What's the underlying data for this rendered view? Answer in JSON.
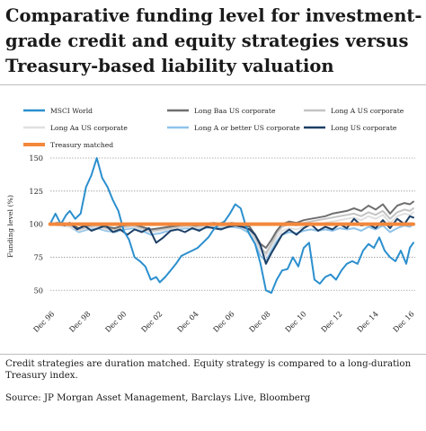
{
  "header": {
    "title": "Comparative funding level for investment-grade credit and equity strategies versus Treasury-based liability valuation"
  },
  "footer": {
    "note": "Credit strategies are duration matched. Equity strategy is compared to a long-duration Treasury index.",
    "source": "Source: JP Morgan Asset Management, Barclays Live, Bloomberg"
  },
  "chart_data": {
    "type": "line",
    "title": "Comparative funding level for investment-grade credit and equity strategies versus Treasury-based liability valuation",
    "xlabel": "",
    "ylabel": "Funding level (%)",
    "ylim": [
      40,
      150
    ],
    "yticks": [
      50,
      75,
      100,
      125,
      150
    ],
    "xlim": [
      1996.917,
      2017.2
    ],
    "xticks": [
      {
        "label": "Dec 96",
        "value": 1996.917
      },
      {
        "label": "Dec 98",
        "value": 1998.917
      },
      {
        "label": "Dec 00",
        "value": 2000.917
      },
      {
        "label": "Dec 02",
        "value": 2002.917
      },
      {
        "label": "Dec 04",
        "value": 2004.917
      },
      {
        "label": "Dec 06",
        "value": 2006.917
      },
      {
        "label": "Dec 08",
        "value": 2008.917
      },
      {
        "label": "Dec 10",
        "value": 2010.917
      },
      {
        "label": "Dec 12",
        "value": 2012.917
      },
      {
        "label": "Dec 14",
        "value": 2014.917
      },
      {
        "label": "Dec 16",
        "value": 2016.917
      }
    ],
    "grid": "horizontal dotted",
    "legend_position": "top",
    "series": [
      {
        "name": "MSCI World",
        "color": "#2b8fce",
        "x": [
          1996.9,
          1997.2,
          1997.5,
          1997.8,
          1998.0,
          1998.3,
          1998.6,
          1998.9,
          1999.2,
          1999.5,
          1999.8,
          2000.1,
          2000.4,
          2000.7,
          2001.0,
          2001.3,
          2001.6,
          2001.9,
          2002.2,
          2002.5,
          2002.8,
          2003.0,
          2003.3,
          2003.6,
          2003.9,
          2004.2,
          2004.5,
          2004.8,
          2005.1,
          2005.4,
          2005.7,
          2006.0,
          2006.3,
          2006.6,
          2006.9,
          2007.2,
          2007.5,
          2007.8,
          2008.0,
          2008.3,
          2008.6,
          2008.9,
          2009.2,
          2009.5,
          2009.8,
          2010.1,
          2010.4,
          2010.7,
          2011.0,
          2011.3,
          2011.6,
          2011.9,
          2012.2,
          2012.5,
          2012.8,
          2013.1,
          2013.4,
          2013.7,
          2014.0,
          2014.3,
          2014.6,
          2014.9,
          2015.2,
          2015.5,
          2015.8,
          2016.1,
          2016.4,
          2016.7,
          2016.9,
          2017.1
        ],
        "y": [
          100,
          108,
          100,
          107,
          110,
          104,
          108,
          128,
          137,
          150,
          135,
          128,
          118,
          110,
          95,
          88,
          75,
          72,
          68,
          58,
          60,
          56,
          60,
          65,
          70,
          76,
          78,
          80,
          82,
          86,
          90,
          96,
          100,
          102,
          108,
          115,
          112,
          98,
          92,
          85,
          70,
          50,
          48,
          58,
          65,
          66,
          75,
          68,
          82,
          86,
          58,
          55,
          60,
          62,
          58,
          65,
          70,
          72,
          70,
          80,
          85,
          82,
          90,
          80,
          75,
          72,
          80,
          70,
          82,
          86
        ]
      },
      {
        "name": "Long Baa US corporate",
        "color": "#6f6f6f",
        "x": [
          1996.9,
          1997.5,
          1998.0,
          1998.5,
          1999.0,
          1999.5,
          2000.0,
          2000.5,
          2001.0,
          2001.5,
          2002.0,
          2002.5,
          2003.0,
          2003.5,
          2004.0,
          2004.5,
          2005.0,
          2005.5,
          2006.0,
          2006.5,
          2007.0,
          2007.5,
          2008.0,
          2008.3,
          2008.6,
          2008.9,
          2009.2,
          2009.5,
          2009.8,
          2010.2,
          2010.6,
          2011.0,
          2011.4,
          2011.8,
          2012.2,
          2012.6,
          2013.0,
          2013.4,
          2013.8,
          2014.2,
          2014.6,
          2015.0,
          2015.4,
          2015.8,
          2016.2,
          2016.6,
          2016.9,
          2017.1
        ],
        "y": [
          100,
          101,
          100,
          97,
          99,
          100,
          98,
          97,
          99,
          100,
          98,
          96,
          97,
          98,
          99,
          100,
          99,
          100,
          101,
          100,
          101,
          100,
          98,
          92,
          85,
          82,
          88,
          95,
          100,
          102,
          101,
          103,
          104,
          105,
          106,
          108,
          109,
          110,
          112,
          110,
          114,
          111,
          115,
          108,
          114,
          116,
          115,
          117
        ]
      },
      {
        "name": "Long A US corporate",
        "color": "#c4c4c4",
        "x": [
          1996.9,
          1997.5,
          1998.0,
          1998.5,
          1999.0,
          1999.5,
          2000.0,
          2000.5,
          2001.0,
          2001.5,
          2002.0,
          2002.5,
          2003.0,
          2003.5,
          2004.0,
          2004.5,
          2005.0,
          2005.5,
          2006.0,
          2006.5,
          2007.0,
          2007.5,
          2008.0,
          2008.3,
          2008.6,
          2008.9,
          2009.2,
          2009.5,
          2009.8,
          2010.2,
          2010.6,
          2011.0,
          2011.4,
          2011.8,
          2012.2,
          2012.6,
          2013.0,
          2013.4,
          2013.8,
          2014.2,
          2014.6,
          2015.0,
          2015.4,
          2015.8,
          2016.2,
          2016.6,
          2016.9,
          2017.1
        ],
        "y": [
          100,
          100,
          99,
          96,
          98,
          99,
          97,
          96,
          98,
          99,
          97,
          95,
          96,
          97,
          98,
          99,
          98,
          99,
          100,
          99,
          100,
          99,
          96,
          90,
          82,
          78,
          85,
          93,
          98,
          100,
          99,
          101,
          102,
          103,
          104,
          105,
          106,
          107,
          108,
          106,
          109,
          107,
          110,
          104,
          109,
          111,
          110,
          112
        ]
      },
      {
        "name": "Long Aa US corporate",
        "color": "#e0e0e0",
        "x": [
          1996.9,
          1997.5,
          1998.0,
          1998.5,
          1999.0,
          1999.5,
          2000.0,
          2000.5,
          2001.0,
          2001.5,
          2002.0,
          2002.5,
          2003.0,
          2003.5,
          2004.0,
          2004.5,
          2005.0,
          2005.5,
          2006.0,
          2006.5,
          2007.0,
          2007.5,
          2008.0,
          2008.3,
          2008.6,
          2008.9,
          2009.2,
          2009.5,
          2009.8,
          2010.2,
          2010.6,
          2011.0,
          2011.4,
          2011.8,
          2012.2,
          2012.6,
          2013.0,
          2013.4,
          2013.8,
          2014.2,
          2014.6,
          2015.0,
          2015.4,
          2015.8,
          2016.2,
          2016.6,
          2016.9,
          2017.1
        ],
        "y": [
          100,
          99,
          98,
          95,
          97,
          98,
          96,
          95,
          97,
          98,
          96,
          94,
          95,
          96,
          97,
          98,
          97,
          98,
          99,
          98,
          99,
          98,
          95,
          88,
          80,
          76,
          83,
          90,
          95,
          97,
          96,
          98,
          99,
          100,
          101,
          102,
          103,
          104,
          105,
          103,
          106,
          104,
          107,
          101,
          106,
          108,
          107,
          109
        ]
      },
      {
        "name": "Long A or better US corporate",
        "color": "#8ec3ea",
        "x": [
          1996.9,
          1997.5,
          1998.0,
          1998.5,
          1999.0,
          1999.5,
          2000.0,
          2000.5,
          2001.0,
          2001.5,
          2002.0,
          2002.5,
          2003.0,
          2003.5,
          2004.0,
          2004.5,
          2005.0,
          2005.5,
          2006.0,
          2006.5,
          2007.0,
          2007.5,
          2008.0,
          2008.3,
          2008.6,
          2008.9,
          2009.2,
          2009.5,
          2009.8,
          2010.2,
          2010.6,
          2011.0,
          2011.4,
          2011.8,
          2012.2,
          2012.6,
          2013.0,
          2013.4,
          2013.8,
          2014.2,
          2014.6,
          2015.0,
          2015.4,
          2015.8,
          2016.2,
          2016.6,
          2016.9,
          2017.1
        ],
        "y": [
          100,
          99,
          98,
          94,
          96,
          97,
          95,
          94,
          96,
          97,
          95,
          92,
          93,
          95,
          96,
          97,
          96,
          97,
          98,
          97,
          98,
          97,
          93,
          85,
          76,
          72,
          80,
          87,
          92,
          94,
          93,
          95,
          96,
          95,
          96,
          95,
          97,
          96,
          97,
          95,
          98,
          96,
          99,
          94,
          97,
          99,
          98,
          100
        ]
      },
      {
        "name": "Long US corporate",
        "color": "#1c3f66",
        "x": [
          1996.9,
          1997.3,
          1997.7,
          1998.0,
          1998.4,
          1998.8,
          1999.2,
          1999.6,
          2000.0,
          2000.4,
          2000.8,
          2001.2,
          2001.6,
          2002.0,
          2002.4,
          2002.8,
          2003.2,
          2003.6,
          2004.0,
          2004.4,
          2004.8,
          2005.2,
          2005.6,
          2006.0,
          2006.4,
          2006.8,
          2007.2,
          2007.6,
          2008.0,
          2008.3,
          2008.6,
          2008.9,
          2009.2,
          2009.5,
          2009.8,
          2010.2,
          2010.6,
          2011.0,
          2011.4,
          2011.8,
          2012.2,
          2012.6,
          2013.0,
          2013.4,
          2013.8,
          2014.2,
          2014.6,
          2015.0,
          2015.4,
          2015.8,
          2016.2,
          2016.6,
          2016.9,
          2017.1
        ],
        "y": [
          100,
          101,
          99,
          101,
          96,
          99,
          95,
          97,
          99,
          94,
          96,
          92,
          96,
          94,
          97,
          86,
          90,
          95,
          96,
          94,
          97,
          95,
          98,
          97,
          96,
          98,
          99,
          98,
          96,
          92,
          84,
          70,
          78,
          85,
          92,
          96,
          92,
          97,
          100,
          95,
          98,
          96,
          100,
          97,
          104,
          99,
          100,
          97,
          103,
          97,
          104,
          100,
          106,
          105
        ]
      },
      {
        "name": "Treasury matched",
        "color": "#f3883c",
        "x": [
          1996.9,
          2017.1
        ],
        "y": [
          100,
          100
        ]
      }
    ]
  }
}
